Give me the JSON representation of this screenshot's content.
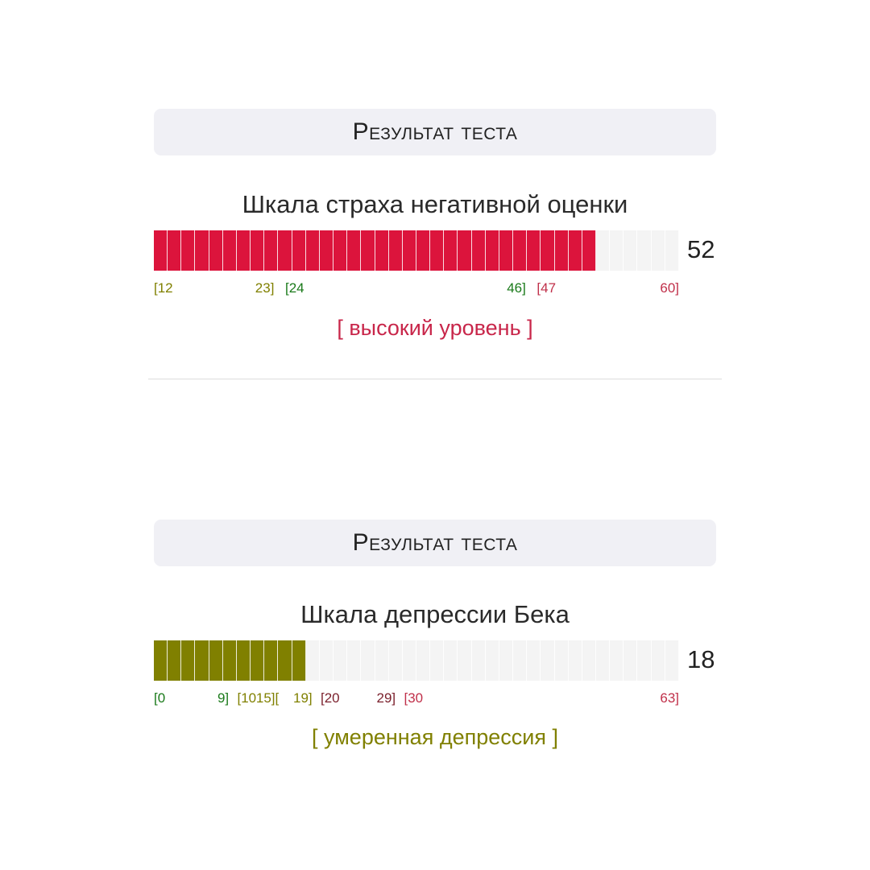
{
  "results": [
    {
      "header": "Результат теста",
      "scale_title": "Шкала страха негативной оценки",
      "score": 52,
      "score_label": "52",
      "min": 12,
      "max": 60,
      "fill_color": "#dc143c",
      "ticks": [
        {
          "text": "[12",
          "value": 12,
          "color": "#808000"
        },
        {
          "text": "23]",
          "value": 23,
          "color": "#808000",
          "anchor": "end"
        },
        {
          "text": "[24",
          "value": 24,
          "color": "#1a7a1a"
        },
        {
          "text": "46]",
          "value": 46,
          "color": "#1a7a1a",
          "anchor": "end"
        },
        {
          "text": "[47",
          "value": 47,
          "color": "#c0304a"
        },
        {
          "text": "60]",
          "value": 60,
          "color": "#c0304a",
          "anchor": "end"
        }
      ],
      "verdict": "[ высокий уровень ]",
      "verdict_color": "#c8264a"
    },
    {
      "header": "Результат теста",
      "scale_title": "Шкала депрессии Бека",
      "score": 18,
      "score_label": "18",
      "min": 0,
      "max": 63,
      "fill_color": "#808000",
      "ticks": [
        {
          "text": "[0",
          "value": 0,
          "color": "#1a7a1a"
        },
        {
          "text": "9]",
          "value": 9,
          "color": "#1a7a1a",
          "anchor": "end"
        },
        {
          "text": "[10",
          "value": 10,
          "color": "#808000"
        },
        {
          "text": "15][",
          "value": 15,
          "color": "#808000",
          "anchor": "end"
        },
        {
          "text": "19]",
          "value": 19,
          "color": "#808000",
          "anchor": "end"
        },
        {
          "text": "[20",
          "value": 20,
          "color": "#7a1f2b"
        },
        {
          "text": "29]",
          "value": 29,
          "color": "#7a1f2b",
          "anchor": "end"
        },
        {
          "text": "[30",
          "value": 30,
          "color": "#c0304a"
        },
        {
          "text": "63]",
          "value": 63,
          "color": "#c0304a",
          "anchor": "end"
        }
      ],
      "verdict": "[ умеренная депрессия ]",
      "verdict_color": "#808000"
    }
  ]
}
